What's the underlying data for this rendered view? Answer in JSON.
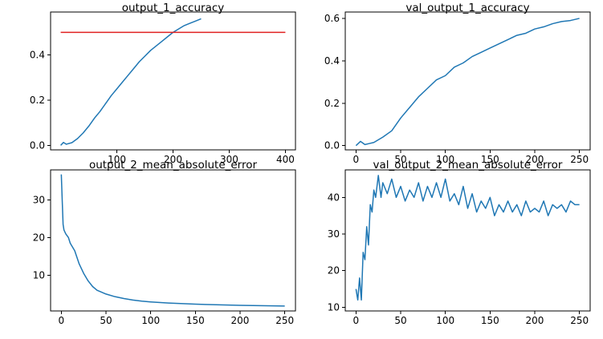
{
  "chart_data": [
    {
      "type": "line",
      "title": "output_1_accuracy",
      "xticks": [
        100,
        200,
        300,
        400
      ],
      "yticks": [
        0.0,
        0.2,
        0.4
      ],
      "tick_labels_x": [
        "100",
        "200",
        "300",
        "400"
      ],
      "tick_labels_y": [
        "0.0",
        "0.2",
        "0.4"
      ],
      "xlim": [
        -18,
        418
      ],
      "ylim": [
        -0.02,
        0.59
      ],
      "series": [
        {
          "color": "#1f77b4",
          "x": [
            0,
            5,
            10,
            20,
            30,
            40,
            50,
            60,
            70,
            80,
            90,
            100,
            110,
            120,
            130,
            140,
            150,
            160,
            170,
            180,
            190,
            200,
            210,
            220,
            230,
            240,
            250
          ],
          "y": [
            0.0,
            0.013,
            0.005,
            0.012,
            0.03,
            0.055,
            0.085,
            0.12,
            0.15,
            0.185,
            0.22,
            0.25,
            0.28,
            0.31,
            0.34,
            0.37,
            0.395,
            0.42,
            0.44,
            0.46,
            0.48,
            0.5,
            0.515,
            0.53,
            0.54,
            0.55,
            0.56
          ]
        },
        {
          "color": "#e02020",
          "x": [
            0,
            400
          ],
          "y": [
            0.5,
            0.5
          ]
        }
      ]
    },
    {
      "type": "line",
      "title": "val_output_1_accuracy",
      "xticks": [
        0,
        50,
        100,
        150,
        200,
        250
      ],
      "yticks": [
        0.0,
        0.2,
        0.4,
        0.6
      ],
      "tick_labels_x": [
        "0",
        "50",
        "100",
        "150",
        "200",
        "250"
      ],
      "tick_labels_y": [
        "0.0",
        "0.2",
        "0.4",
        "0.6"
      ],
      "xlim": [
        -12,
        262
      ],
      "ylim": [
        -0.02,
        0.63
      ],
      "series": [
        {
          "color": "#1f77b4",
          "x": [
            0,
            5,
            10,
            15,
            20,
            30,
            40,
            50,
            60,
            70,
            80,
            90,
            100,
            110,
            120,
            130,
            140,
            150,
            160,
            170,
            180,
            190,
            200,
            210,
            220,
            230,
            240,
            250
          ],
          "y": [
            0.0,
            0.02,
            0.005,
            0.01,
            0.015,
            0.04,
            0.07,
            0.13,
            0.18,
            0.23,
            0.27,
            0.31,
            0.33,
            0.37,
            0.39,
            0.42,
            0.44,
            0.46,
            0.48,
            0.5,
            0.52,
            0.53,
            0.55,
            0.56,
            0.575,
            0.585,
            0.59,
            0.6
          ]
        }
      ]
    },
    {
      "type": "line",
      "title": "output_2_mean_absolute_error",
      "xticks": [
        0,
        50,
        100,
        150,
        200,
        250
      ],
      "yticks": [
        10,
        20,
        30
      ],
      "tick_labels_x": [
        "0",
        "50",
        "100",
        "150",
        "200",
        "250"
      ],
      "tick_labels_y": [
        "10",
        "20",
        "30"
      ],
      "xlim": [
        -12,
        262
      ],
      "ylim": [
        0.5,
        38
      ],
      "series": [
        {
          "color": "#1f77b4",
          "x": [
            0,
            1,
            2,
            3,
            5,
            8,
            10,
            15,
            20,
            25,
            30,
            35,
            40,
            50,
            60,
            70,
            80,
            90,
            100,
            120,
            150,
            200,
            250
          ],
          "y": [
            36.8,
            30,
            23.5,
            22,
            21,
            20,
            18.5,
            16.5,
            13,
            10.5,
            8.5,
            7,
            6,
            5,
            4.3,
            3.8,
            3.4,
            3.1,
            2.9,
            2.6,
            2.3,
            2.0,
            1.8
          ]
        }
      ]
    },
    {
      "type": "line",
      "title": "val_output_2_mean_absolute_error",
      "xticks": [
        0,
        50,
        100,
        150,
        200,
        250
      ],
      "yticks": [
        10,
        20,
        30,
        40
      ],
      "tick_labels_x": [
        "0",
        "50",
        "100",
        "150",
        "200",
        "250"
      ],
      "tick_labels_y": [
        "10",
        "20",
        "30",
        "40"
      ],
      "xlim": [
        -12,
        262
      ],
      "ylim": [
        9,
        47.5
      ],
      "series": [
        {
          "color": "#1f77b4",
          "x": [
            0,
            2,
            4,
            6,
            8,
            10,
            12,
            14,
            16,
            18,
            20,
            22,
            25,
            28,
            30,
            35,
            40,
            45,
            50,
            55,
            60,
            65,
            70,
            75,
            80,
            85,
            90,
            95,
            100,
            105,
            110,
            115,
            120,
            125,
            130,
            135,
            140,
            145,
            150,
            155,
            160,
            165,
            170,
            175,
            180,
            185,
            190,
            195,
            200,
            205,
            210,
            215,
            220,
            225,
            230,
            235,
            240,
            245,
            250
          ],
          "y": [
            15,
            12,
            18,
            12,
            25,
            23,
            32,
            27,
            38,
            36,
            42,
            40,
            46,
            40,
            44,
            41,
            45,
            40,
            43,
            39,
            42,
            40,
            44,
            39,
            43,
            40,
            44,
            40,
            45,
            39,
            41,
            38,
            43,
            37,
            41,
            36,
            39,
            37,
            40,
            35,
            38,
            36,
            39,
            36,
            38,
            35,
            39,
            36,
            37,
            36,
            39,
            35,
            38,
            37,
            38,
            36,
            39,
            38,
            38
          ]
        }
      ]
    }
  ]
}
